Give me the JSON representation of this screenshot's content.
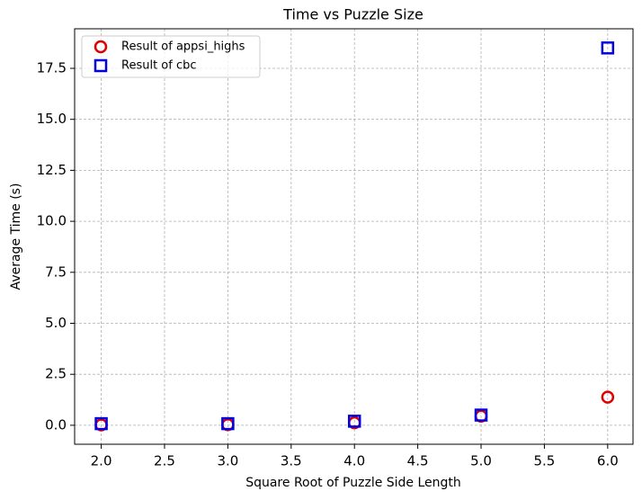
{
  "chart_data": {
    "type": "scatter",
    "title": "Time vs Puzzle Size",
    "x_label": "Square Root of Puzzle Side Length",
    "y_label": "Average Time (s)",
    "x": [
      2,
      3,
      4,
      5,
      6
    ],
    "series": [
      {
        "name": "Result of appsi_highs",
        "color": "#e00000",
        "marker": "circle",
        "values": [
          0.02,
          0.03,
          0.12,
          0.45,
          1.38
        ]
      },
      {
        "name": "Result of cbc",
        "color": "#0000e0",
        "marker": "square",
        "values": [
          0.08,
          0.08,
          0.2,
          0.5,
          18.5
        ]
      }
    ],
    "xlim": [
      1.79,
      6.2
    ],
    "ylim": [
      -0.93,
      19.44
    ],
    "xticks": [
      {
        "value": 2,
        "label": "2.0"
      },
      {
        "value": 2.5,
        "label": "2.5"
      },
      {
        "value": 3,
        "label": "3.0"
      },
      {
        "value": 3.5,
        "label": "3.5"
      },
      {
        "value": 4,
        "label": "4.0"
      },
      {
        "value": 4.5,
        "label": "4.5"
      },
      {
        "value": 5,
        "label": "5.0"
      },
      {
        "value": 5.5,
        "label": "5.5"
      },
      {
        "value": 6,
        "label": "6.0"
      }
    ],
    "yticks": [
      {
        "value": 0,
        "label": "0.0"
      },
      2.5,
      {
        "value": 5,
        "label": "5.0"
      },
      7.5,
      {
        "value": 10,
        "label": "10.0"
      },
      12.5,
      {
        "value": 15,
        "label": "15.0"
      },
      17.5
    ],
    "grid": true,
    "legend": "upper-left"
  }
}
